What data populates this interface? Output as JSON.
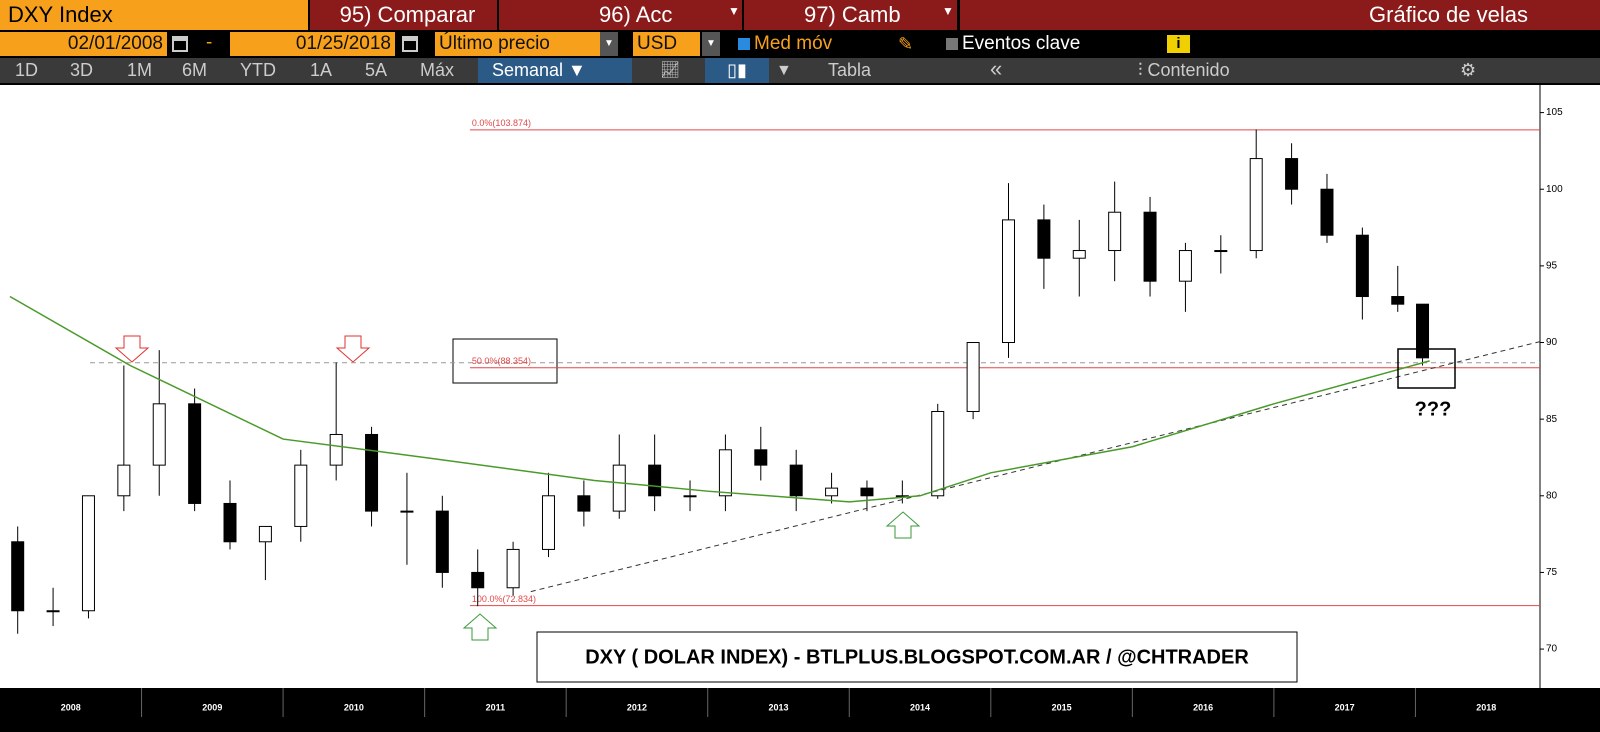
{
  "toolbar": {
    "security": "DXY Index",
    "buttons": [
      "95) Comparar",
      "96) Acc",
      "97) Camb"
    ],
    "chart_title": "Gráfico de velas",
    "start_date": "02/01/2008",
    "separator": "-",
    "end_date": "01/25/2018",
    "price_field": "Último precio",
    "currency": "USD",
    "moving_avg": "Med móv",
    "key_events": "Eventos clave",
    "info": "i",
    "periods": [
      "1D",
      "3D",
      "1M",
      "6M",
      "YTD",
      "1A",
      "5A",
      "Máx"
    ],
    "frequency": "Semanal",
    "table": "Tabla",
    "back": "«",
    "contents": "Contenido"
  },
  "chart_data": {
    "type": "candlestick",
    "annotation": "DXY ( DOLAR INDEX) - BTLPLUS.BLOGSPOT.COM.AR / @CHTRADER",
    "question": "???",
    "xlim": [
      2008,
      2018.88
    ],
    "ylim": [
      67.46,
      106.8
    ],
    "yticks": [
      70,
      75,
      80,
      85,
      90,
      95,
      100,
      105
    ],
    "xticks": [
      {
        "value": 2008.5,
        "label": "2008"
      },
      {
        "value": 2009.5,
        "label": "2009"
      },
      {
        "value": 2010.5,
        "label": "2010"
      },
      {
        "value": 2011.5,
        "label": "2011"
      },
      {
        "value": 2012.5,
        "label": "2012"
      },
      {
        "value": 2013.5,
        "label": "2013"
      },
      {
        "value": 2014.5,
        "label": "2014"
      },
      {
        "value": 2015.5,
        "label": "2015"
      },
      {
        "value": 2016.5,
        "label": "2016"
      },
      {
        "value": 2017.5,
        "label": "2017"
      },
      {
        "value": 2018.5,
        "label": "2018"
      }
    ],
    "x": [
      2008.125,
      2008.375,
      2008.625,
      2008.875,
      2009.125,
      2009.375,
      2009.625,
      2009.875,
      2010.125,
      2010.375,
      2010.625,
      2010.875,
      2011.125,
      2011.375,
      2011.625,
      2011.875,
      2012.125,
      2012.375,
      2012.625,
      2012.875,
      2013.125,
      2013.375,
      2013.625,
      2013.875,
      2014.125,
      2014.375,
      2014.625,
      2014.875,
      2015.125,
      2015.375,
      2015.625,
      2015.875,
      2016.125,
      2016.375,
      2016.625,
      2016.875,
      2017.125,
      2017.375,
      2017.625,
      2017.875,
      2018.05
    ],
    "open": [
      77,
      72.5,
      72.5,
      80,
      82,
      86,
      79.5,
      77,
      78,
      82,
      84,
      79,
      79,
      75,
      74,
      76.5,
      80,
      79,
      82,
      80,
      80,
      83,
      82,
      80,
      80.5,
      80,
      80,
      85.5,
      90,
      98,
      95.5,
      96,
      98.5,
      94,
      96,
      96,
      102,
      100,
      97,
      93,
      92.5
    ],
    "high": [
      78,
      74,
      80,
      88.5,
      89.5,
      87,
      81,
      78,
      83,
      88.7,
      84.5,
      81.5,
      80,
      76.5,
      77,
      81.5,
      81,
      84,
      84,
      81,
      84,
      84.5,
      83,
      81.5,
      81,
      81,
      86,
      90,
      100.4,
      99,
      98,
      100.5,
      99.5,
      96.5,
      97,
      103.9,
      103,
      101,
      97.5,
      95,
      92.5
    ],
    "low": [
      71,
      71.5,
      72,
      79,
      80,
      79,
      76.5,
      74.5,
      77,
      81,
      78,
      75.5,
      74,
      72.8,
      73.5,
      76,
      78,
      78.5,
      79,
      79,
      79,
      81,
      79,
      79.5,
      79,
      79.5,
      79.8,
      85,
      89,
      93.5,
      93,
      94,
      93,
      92,
      94.5,
      95.5,
      99,
      96.5,
      91.5,
      92,
      88.5
    ],
    "close": [
      72.5,
      72.5,
      80,
      82,
      86,
      79.5,
      77,
      78,
      82,
      84,
      79,
      79,
      75,
      74,
      76.5,
      80,
      79,
      82,
      80,
      80,
      83,
      82,
      80,
      80.5,
      80,
      80,
      85.5,
      90,
      98,
      95.5,
      96,
      98.5,
      94,
      96,
      96,
      102,
      100,
      97,
      93,
      92.5,
      89
    ],
    "moving_average": {
      "color": "#4a9a2a",
      "x": [
        2008.07,
        2008.92,
        2010,
        2011,
        2012.2,
        2013,
        2014,
        2014.5,
        2015,
        2016,
        2017,
        2018.1
      ],
      "values": [
        93,
        88.5,
        83.7,
        82.5,
        81,
        80.3,
        79.6,
        80,
        81.5,
        83.2,
        86,
        88.8
      ]
    },
    "trendline": {
      "x": [
        2011.75,
        2018.88
      ],
      "values": [
        73.75,
        90.06
      ]
    },
    "fib_start": 2011.32,
    "fib_color": "#e04848",
    "fib_levels": [
      {
        "value": 103.874,
        "label": "0.0%(103.874)"
      },
      {
        "value": 88.354,
        "label": "50.0%(88.354)"
      },
      {
        "value": 72.834,
        "label": "100.0%(72.834)"
      }
    ]
  }
}
